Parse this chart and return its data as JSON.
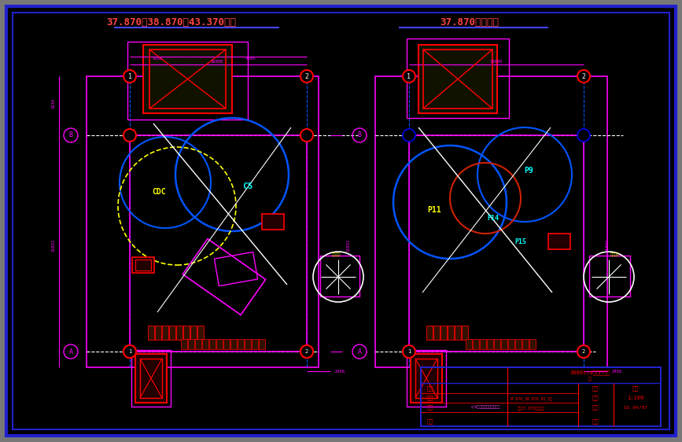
{
  "bg_color": "#000000",
  "border_color": "#2020cc",
  "magenta": "#ff00ff",
  "red": "#ff0000",
  "dark_red": "#cc0000",
  "blue": "#0055ff",
  "blue2": "#0000cc",
  "cyan": "#00ffff",
  "yellow": "#ffff00",
  "white": "#ffffff",
  "pink": "#ff88ff",
  "title1": "37.870，38.870，43.370平面",
  "title2": "37.870基础平面",
  "title_color": "#ff4444",
  "label_CDC": "CDC",
  "label_C5": "C5",
  "label_P11": "P11",
  "label_P9": "P9",
  "label_P14": "P14",
  "label_P15": "P15",
  "gray_bg": "#787878"
}
